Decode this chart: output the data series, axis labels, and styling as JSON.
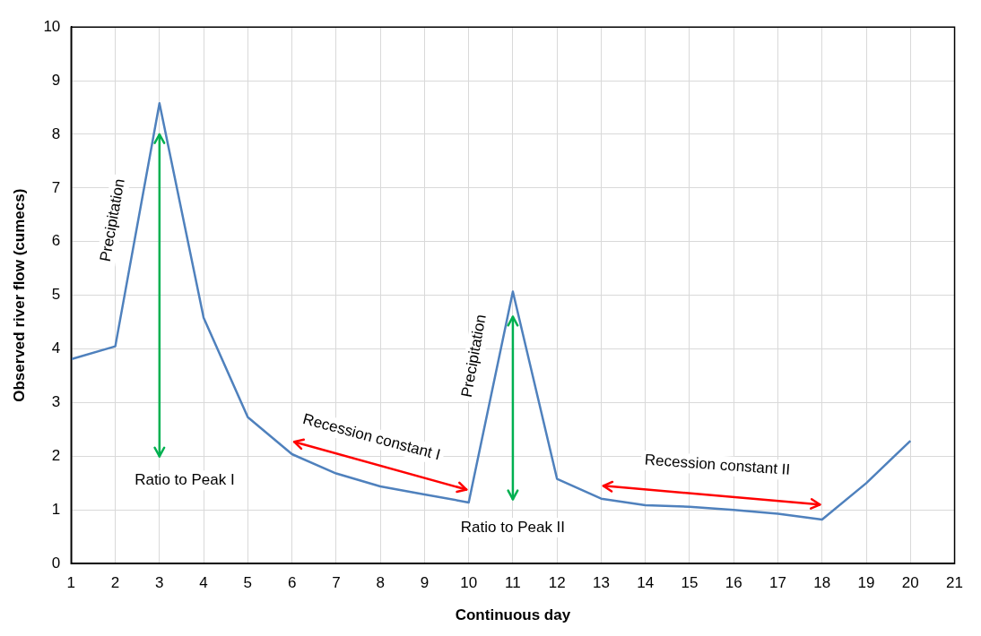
{
  "chart_data": {
    "type": "line",
    "xlabel": "Continuous day",
    "ylabel": "Observed river flow (cumecs)",
    "x": [
      1,
      2,
      3,
      4,
      5,
      6,
      7,
      8,
      9,
      10,
      11,
      12,
      13,
      14,
      15,
      16,
      17,
      18,
      19,
      20
    ],
    "series": [
      {
        "color": "#4f81bd",
        "values": [
          3.81,
          4.05,
          8.58,
          4.58,
          2.73,
          2.04,
          1.68,
          1.44,
          1.29,
          1.14,
          5.07,
          1.58,
          1.21,
          1.09,
          1.06,
          1.0,
          0.93,
          0.82,
          1.5,
          2.29
        ]
      }
    ],
    "xlim": [
      1,
      21
    ],
    "xticks": [
      1,
      2,
      3,
      4,
      5,
      6,
      7,
      8,
      9,
      10,
      11,
      12,
      13,
      14,
      15,
      16,
      17,
      18,
      19,
      20,
      21
    ],
    "ylim": [
      0,
      10
    ],
    "yticks": [
      0,
      1,
      2,
      3,
      4,
      5,
      6,
      7,
      8,
      9,
      10
    ],
    "grid": true,
    "legend": false,
    "marker": "none",
    "line_style": "solid",
    "annotations": [
      "Precipitation",
      "Ratio to Peak I",
      "Recession constant I",
      "Precipitation",
      "Ratio to Peak II",
      "Recession constant II"
    ]
  }
}
